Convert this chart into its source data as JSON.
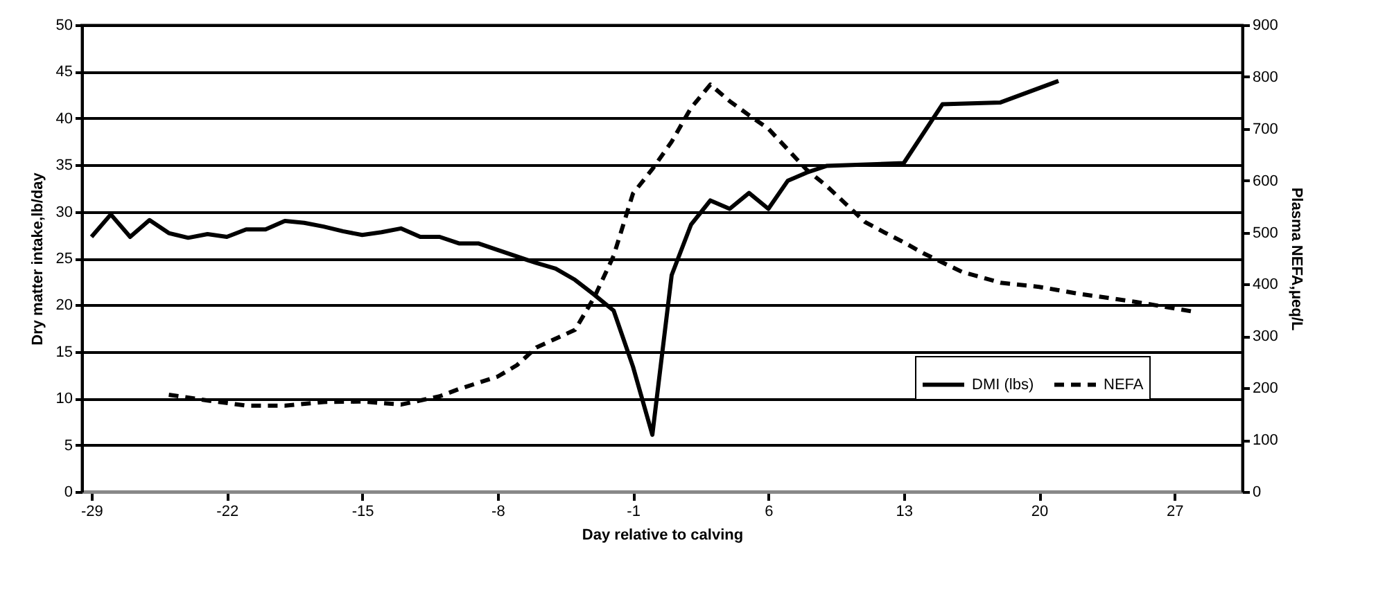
{
  "chart_data": {
    "type": "line",
    "xlabel": "Day relative to calving",
    "ylabel": "Dry matter intake,lb/day",
    "y2label": "Plasma NEFA,μeq/L",
    "xlim": [
      -29.5,
      30.5
    ],
    "xticks": [
      -29,
      -22,
      -15,
      -8,
      -1,
      6,
      13,
      20,
      27
    ],
    "ylim": [
      0,
      50
    ],
    "yticks": [
      0,
      5,
      10,
      15,
      20,
      25,
      30,
      35,
      40,
      45,
      50
    ],
    "y2lim": [
      0,
      900
    ],
    "y2ticks": [
      0,
      100,
      200,
      300,
      400,
      500,
      600,
      700,
      800,
      900
    ],
    "grid": "y",
    "legend": "bottom right",
    "marker": "none",
    "series": [
      {
        "name": "DMI (lbs)",
        "color": "#000000",
        "line_style": "solid",
        "axis": "y",
        "x": [
          -29,
          -28,
          -27,
          -26,
          -25,
          -24,
          -23,
          -22,
          -21,
          -20,
          -19,
          -18,
          -17,
          -16,
          -15,
          -14,
          -13,
          -12,
          -11,
          -10,
          -9,
          -8,
          -6,
          -5,
          -4,
          -3,
          -2,
          -1,
          0,
          1,
          2,
          3,
          4,
          5,
          6,
          7,
          8,
          9,
          13,
          15,
          18,
          21
        ],
        "values": [
          27.3,
          29.7,
          27.3,
          29.1,
          27.7,
          27.2,
          27.6,
          27.3,
          28.1,
          28.1,
          29.0,
          28.8,
          28.4,
          27.9,
          27.5,
          27.8,
          28.2,
          27.3,
          27.3,
          26.6,
          26.6,
          25.9,
          24.5,
          23.9,
          22.7,
          21.1,
          19.4,
          13.4,
          6.1,
          23.2,
          28.6,
          31.2,
          30.3,
          32.0,
          30.3,
          33.3,
          34.2,
          34.9,
          35.2,
          41.5,
          41.7,
          44.0
        ]
      },
      {
        "name": "NEFA",
        "color": "#000000",
        "line_style": "dashed",
        "axis": "y2",
        "x": [
          -25,
          -23,
          -21,
          -19,
          -17,
          -15,
          -13,
          -11,
          -10,
          -8,
          -7,
          -6,
          -4,
          -3,
          -2,
          -1,
          0,
          1,
          2,
          3,
          4,
          5,
          6,
          7,
          8,
          9,
          10,
          11,
          12,
          13,
          14,
          16,
          18,
          20,
          22,
          25,
          28
        ],
        "values": [
          187,
          176,
          166,
          166,
          173,
          174,
          168,
          184,
          198,
          222,
          244,
          278,
          312,
          375,
          455,
          575,
          622,
          675,
          740,
          785,
          753,
          726,
          700,
          660,
          620,
          590,
          555,
          520,
          500,
          481,
          460,
          424,
          403,
          395,
          382,
          366,
          347
        ]
      }
    ]
  }
}
